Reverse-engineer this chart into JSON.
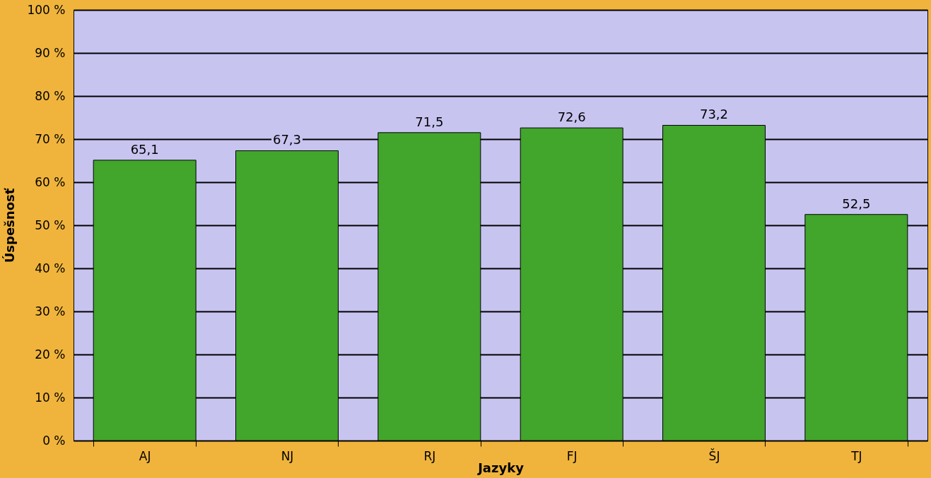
{
  "chart_data": {
    "type": "bar",
    "xlabel": "Jazyky",
    "ylabel": "Úspešnosť",
    "categories": [
      "AJ",
      "NJ",
      "RJ",
      "FJ",
      "ŠJ",
      "TJ"
    ],
    "values": [
      65.1,
      67.3,
      71.5,
      72.6,
      73.2,
      52.5
    ],
    "value_labels": [
      "65,1",
      "67,3",
      "71,5",
      "72,6",
      "73,2",
      "52,5"
    ],
    "color": "#42a52c",
    "ylim": [
      0,
      100
    ],
    "yticks": [
      {
        "value": 0,
        "label": "0 %"
      },
      {
        "value": 10,
        "label": "10 %"
      },
      {
        "value": 20,
        "label": "20 %"
      },
      {
        "value": 30,
        "label": "30 %"
      },
      {
        "value": 40,
        "label": "40 %"
      },
      {
        "value": 50,
        "label": "50 %"
      },
      {
        "value": 60,
        "label": "60 %"
      },
      {
        "value": 70,
        "label": "70 %"
      },
      {
        "value": 80,
        "label": "80 %"
      },
      {
        "value": 90,
        "label": "90 %"
      },
      {
        "value": 100,
        "label": "100 %"
      }
    ],
    "grid": "y"
  }
}
